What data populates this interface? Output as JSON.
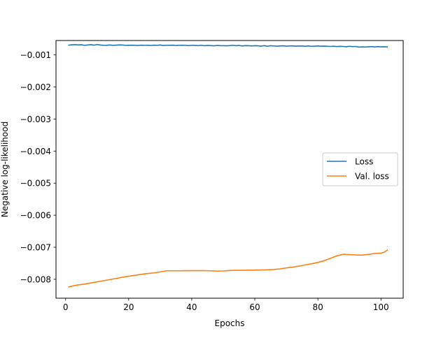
{
  "chart_data": {
    "type": "line",
    "xlabel": "Epochs",
    "ylabel": "Negative log-likelihood",
    "xlim": [
      -3.05,
      107.05
    ],
    "ylim": [
      -0.00859,
      -0.00055
    ],
    "xticks": [
      0,
      20,
      40,
      60,
      80,
      100
    ],
    "xtick_labels": [
      "0",
      "20",
      "40",
      "60",
      "80",
      "100"
    ],
    "yticks": [
      -0.008,
      -0.007,
      -0.006,
      -0.005,
      -0.004,
      -0.003,
      -0.002,
      -0.001
    ],
    "ytick_labels": [
      "−0.008",
      "−0.007",
      "−0.006",
      "−0.005",
      "−0.004",
      "−0.003",
      "−0.002",
      "−0.001"
    ],
    "grid": false,
    "legend_position": "center-right",
    "series": [
      {
        "name": "Loss",
        "color": "#1f77b4",
        "x": [
          1,
          2,
          3,
          4,
          5,
          6,
          7,
          8,
          9,
          10,
          11,
          12,
          13,
          14,
          15,
          16,
          17,
          18,
          19,
          20,
          21,
          22,
          23,
          24,
          25,
          26,
          27,
          28,
          29,
          30,
          31,
          32,
          33,
          34,
          35,
          36,
          37,
          38,
          39,
          40,
          41,
          42,
          43,
          44,
          45,
          46,
          47,
          48,
          49,
          50,
          51,
          52,
          53,
          54,
          55,
          56,
          57,
          58,
          59,
          60,
          61,
          62,
          63,
          64,
          65,
          66,
          67,
          68,
          69,
          70,
          71,
          72,
          73,
          74,
          75,
          76,
          77,
          78,
          79,
          80,
          81,
          82,
          83,
          84,
          85,
          86,
          87,
          88,
          89,
          90,
          91,
          92,
          93,
          94,
          95,
          96,
          97,
          98,
          99,
          100,
          101,
          102
        ],
        "y": [
          -0.000695,
          -0.000685,
          -0.00068,
          -0.000688,
          -0.000683,
          -0.0007,
          -0.00069,
          -0.00068,
          -0.000695,
          -0.000675,
          -0.00069,
          -0.0007,
          -0.000698,
          -0.00069,
          -0.0007,
          -0.000695,
          -0.000688,
          -0.00069,
          -0.0007,
          -0.000698,
          -0.000695,
          -0.0007,
          -0.000705,
          -0.000695,
          -0.0007,
          -0.000698,
          -0.000705,
          -0.000695,
          -0.0007,
          -0.00069,
          -0.000705,
          -0.0007,
          -0.000698,
          -0.000695,
          -0.000705,
          -0.0007,
          -0.000698,
          -0.0007,
          -0.00071,
          -0.0007,
          -0.000705,
          -0.00071,
          -0.0007,
          -0.000712,
          -0.000705,
          -0.00071,
          -0.000715,
          -0.000705,
          -0.00071,
          -0.000712,
          -0.000715,
          -0.00071,
          -0.0007,
          -0.000712,
          -0.000705,
          -0.00072,
          -0.00071,
          -0.000712,
          -0.00072,
          -0.000712,
          -0.000715,
          -0.000725,
          -0.00071,
          -0.00073,
          -0.000712,
          -0.00072,
          -0.000725,
          -0.00072,
          -0.000715,
          -0.000725,
          -0.00072,
          -0.000718,
          -0.000725,
          -0.00072,
          -0.000722,
          -0.000728,
          -0.00072,
          -0.00073,
          -0.000725,
          -0.00072,
          -0.000728,
          -0.000725,
          -0.00073,
          -0.000735,
          -0.000728,
          -0.00074,
          -0.000732,
          -0.000735,
          -0.000745,
          -0.00073,
          -0.00074,
          -0.000735,
          -0.000755,
          -0.00075,
          -0.000752,
          -0.000748,
          -0.00074,
          -0.00075,
          -0.000742,
          -0.000748,
          -0.000745,
          -0.000748
        ]
      },
      {
        "name": "Val. loss",
        "color": "#ff7f0e",
        "x": [
          1,
          2,
          4,
          6,
          8,
          10,
          12,
          14,
          16,
          18,
          20,
          22,
          24,
          26,
          28,
          30,
          32,
          34,
          36,
          38,
          40,
          42,
          44,
          46,
          48,
          50,
          52,
          54,
          56,
          58,
          60,
          62,
          64,
          66,
          68,
          70,
          72,
          74,
          76,
          78,
          80,
          82,
          84,
          86,
          88,
          90,
          92,
          94,
          96,
          98,
          100,
          101,
          102
        ],
        "y": [
          -0.00824,
          -0.008215,
          -0.008175,
          -0.00815,
          -0.008115,
          -0.00808,
          -0.008045,
          -0.00801,
          -0.007975,
          -0.007935,
          -0.007905,
          -0.007875,
          -0.007845,
          -0.00782,
          -0.0078,
          -0.00777,
          -0.007735,
          -0.007735,
          -0.007735,
          -0.00773,
          -0.00773,
          -0.00773,
          -0.00773,
          -0.007735,
          -0.007745,
          -0.00774,
          -0.007725,
          -0.00772,
          -0.00772,
          -0.007715,
          -0.007715,
          -0.00771,
          -0.007705,
          -0.007695,
          -0.007675,
          -0.007645,
          -0.00762,
          -0.00759,
          -0.00755,
          -0.007515,
          -0.007475,
          -0.00742,
          -0.007345,
          -0.00727,
          -0.00722,
          -0.00723,
          -0.00724,
          -0.007245,
          -0.007225,
          -0.007195,
          -0.007185,
          -0.007155,
          -0.00709
        ]
      }
    ]
  }
}
